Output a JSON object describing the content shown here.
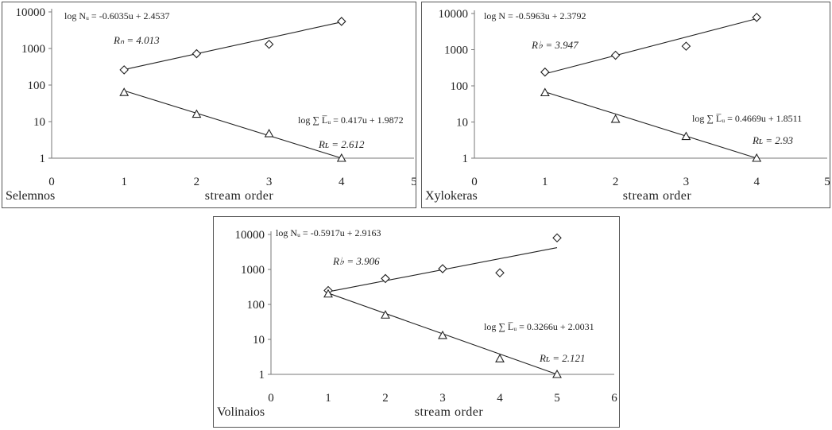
{
  "chart_data": [
    {
      "type": "scatter",
      "panel_label": "Selemnos",
      "xlabel": "stream order",
      "y_scale": "log",
      "xlim": [
        0,
        5
      ],
      "ylim": [
        1,
        10000
      ],
      "x_ticks": [
        "0",
        "1",
        "2",
        "3",
        "4",
        "5"
      ],
      "y_ticks": [
        "1",
        "10",
        "100",
        "1000",
        "10000"
      ],
      "series": [
        {
          "marker": "diamond",
          "x": [
            1,
            2,
            3,
            4
          ],
          "y": [
            260,
            720,
            1300,
            5500
          ],
          "fit": {
            "x": [
              1,
              4
            ],
            "y": [
              265,
              5300
            ]
          },
          "equation": "log Nᵤ = -0.6035u + 2.4537",
          "ratio": "Rₙ = 4.013"
        },
        {
          "marker": "triangle",
          "x": [
            1,
            2,
            3,
            4
          ],
          "y": [
            63,
            16,
            4.7,
            1
          ],
          "fit": {
            "x": [
              1,
              4
            ],
            "y": [
              70,
              1.0
            ]
          },
          "equation": "log ∑ L̅ᵤ = 0.417u + 1.9872",
          "ratio": "Rʟ = 2.612"
        }
      ]
    },
    {
      "type": "scatter",
      "panel_label": "Xylokeras",
      "xlabel": "stream order",
      "y_scale": "log",
      "xlim": [
        0,
        5
      ],
      "ylim": [
        1,
        10000
      ],
      "x_ticks": [
        "0",
        "1",
        "2",
        "3",
        "4",
        "5"
      ],
      "y_ticks": [
        "1",
        "10",
        "100",
        "1000",
        "10000"
      ],
      "series": [
        {
          "marker": "diamond",
          "x": [
            1,
            2,
            3,
            4
          ],
          "y": [
            240,
            700,
            1250,
            7800
          ],
          "fit": {
            "x": [
              1,
              4
            ],
            "y": [
              215,
              7200
            ]
          },
          "equation": "log N = -0.5963u + 2.3792",
          "ratio": "R♭ = 3.947"
        },
        {
          "marker": "triangle",
          "x": [
            1,
            2,
            3,
            4
          ],
          "y": [
            65,
            12,
            4,
            1
          ],
          "fit": {
            "x": [
              1,
              4
            ],
            "y": [
              68,
              1.0
            ]
          },
          "equation": "log ∑ L̅ᵤ = 0.4669u + 1.8511",
          "ratio": "Rʟ = 2.93"
        }
      ]
    },
    {
      "type": "scatter",
      "panel_label": "Volinaios",
      "xlabel": "stream order",
      "y_scale": "log",
      "xlim": [
        0,
        6
      ],
      "ylim": [
        1,
        10000
      ],
      "x_ticks": [
        "0",
        "1",
        "2",
        "3",
        "4",
        "5",
        "6"
      ],
      "y_ticks": [
        "1",
        "10",
        "100",
        "1000",
        "10000"
      ],
      "series": [
        {
          "marker": "diamond",
          "x": [
            1,
            2,
            3,
            4,
            5
          ],
          "y": [
            250,
            550,
            1050,
            800,
            8000
          ],
          "fit": {
            "x": [
              1,
              5
            ],
            "y": [
              230,
              4200
            ]
          },
          "equation": "log Nᵤ = -0.5917u + 2.9163",
          "ratio": "R♭ = 3.906"
        },
        {
          "marker": "triangle",
          "x": [
            1,
            2,
            3,
            4,
            5
          ],
          "y": [
            200,
            50,
            13,
            2.8,
            1
          ],
          "fit": {
            "x": [
              1,
              5
            ],
            "y": [
              210,
              1.0
            ]
          },
          "equation": "log ∑ L̅ᵤ = 0.3266u + 2.0031",
          "ratio": "Rʟ = 2.121"
        }
      ]
    }
  ]
}
